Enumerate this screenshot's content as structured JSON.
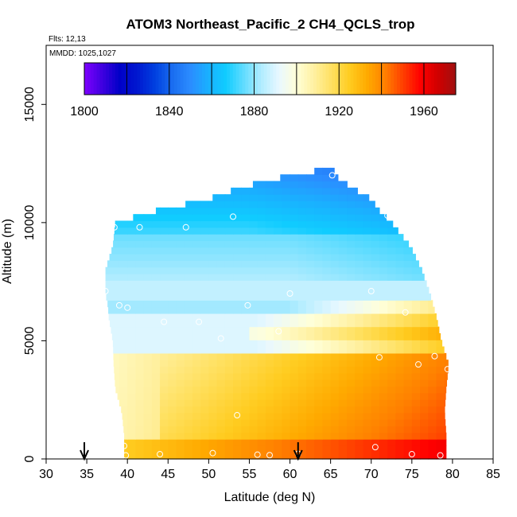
{
  "chart_data": {
    "type": "heatmap",
    "title": "ATOM3 Northeast_Pacific_2 CH4_QCLS_trop",
    "flights_text": "Flts: 12,13",
    "mmdd_text": "MMDD: 1025,1027",
    "xlabel": "Latitude (deg N)",
    "ylabel": "Altitude (m)",
    "xlim": [
      30,
      85
    ],
    "ylim": [
      0,
      17500
    ],
    "x_ticks": [
      30,
      35,
      40,
      45,
      50,
      55,
      60,
      65,
      70,
      75,
      80,
      85
    ],
    "y_ticks": [
      0,
      5000,
      10000,
      15000
    ],
    "colorbar": {
      "ticks": [
        1800,
        1840,
        1880,
        1920,
        1960
      ],
      "range": [
        1800,
        1975
      ],
      "colors": [
        "#7f00ff",
        "#4000e0",
        "#0000c8",
        "#0018d0",
        "#0040e0",
        "#1a6ef0",
        "#2b8cff",
        "#1ab0ff",
        "#10ccff",
        "#60dcff",
        "#b0ecff",
        "#e8f8ff",
        "#ffffd8",
        "#fff0a0",
        "#ffe060",
        "#ffcc20",
        "#ffaa00",
        "#ff8000",
        "#ff4000",
        "#ff0000",
        "#d00000",
        "#a01010"
      ]
    },
    "profile": {
      "altitudes_m": [
        300,
        1000,
        2000,
        3000,
        4000,
        5000,
        6000,
        6500,
        7000,
        8000,
        9000,
        10000,
        10500,
        11000,
        11500,
        12000,
        12300
      ],
      "lat_min": [
        39.6,
        39.6,
        39.3,
        38.5,
        38.3,
        38.2,
        37.7,
        37.6,
        37.3,
        37.3,
        38.2,
        38.5,
        43.5,
        50,
        54,
        60,
        65
      ],
      "lat_max": [
        79.2,
        79.2,
        79.0,
        79.2,
        79.5,
        78.6,
        78.0,
        77.6,
        77.2,
        76.2,
        74.8,
        72.5,
        71,
        70,
        67.5,
        65.5,
        65.4
      ]
    },
    "measurement_points": [
      {
        "lat": 39.8,
        "alt_m": 150
      },
      {
        "lat": 39.6,
        "alt_m": 550
      },
      {
        "lat": 44.0,
        "alt_m": 200
      },
      {
        "lat": 50.5,
        "alt_m": 250
      },
      {
        "lat": 56.0,
        "alt_m": 180
      },
      {
        "lat": 57.5,
        "alt_m": 160
      },
      {
        "lat": 61.0,
        "alt_m": 220
      },
      {
        "lat": 70.5,
        "alt_m": 500
      },
      {
        "lat": 75.0,
        "alt_m": 200
      },
      {
        "lat": 78.5,
        "alt_m": 150
      },
      {
        "lat": 53.5,
        "alt_m": 1850
      },
      {
        "lat": 79.4,
        "alt_m": 3800
      },
      {
        "lat": 75.8,
        "alt_m": 4000
      },
      {
        "lat": 77.8,
        "alt_m": 4350
      },
      {
        "lat": 71.0,
        "alt_m": 4300
      },
      {
        "lat": 51.5,
        "alt_m": 5100
      },
      {
        "lat": 58.6,
        "alt_m": 5400
      },
      {
        "lat": 44.5,
        "alt_m": 5800
      },
      {
        "lat": 48.8,
        "alt_m": 5800
      },
      {
        "lat": 39.0,
        "alt_m": 6500
      },
      {
        "lat": 40.0,
        "alt_m": 6400
      },
      {
        "lat": 54.8,
        "alt_m": 6500
      },
      {
        "lat": 74.2,
        "alt_m": 6200
      },
      {
        "lat": 60.0,
        "alt_m": 7000
      },
      {
        "lat": 37.3,
        "alt_m": 7100
      },
      {
        "lat": 70.0,
        "alt_m": 7100
      },
      {
        "lat": 38.4,
        "alt_m": 9800
      },
      {
        "lat": 41.5,
        "alt_m": 9800
      },
      {
        "lat": 47.2,
        "alt_m": 9800
      },
      {
        "lat": 53.0,
        "alt_m": 10250
      },
      {
        "lat": 72.0,
        "alt_m": 10300
      },
      {
        "lat": 65.2,
        "alt_m": 12000
      }
    ],
    "markers": [
      {
        "lat": 34.7,
        "label": "arrow"
      },
      {
        "lat": 61.0,
        "label": "arrow"
      }
    ]
  }
}
